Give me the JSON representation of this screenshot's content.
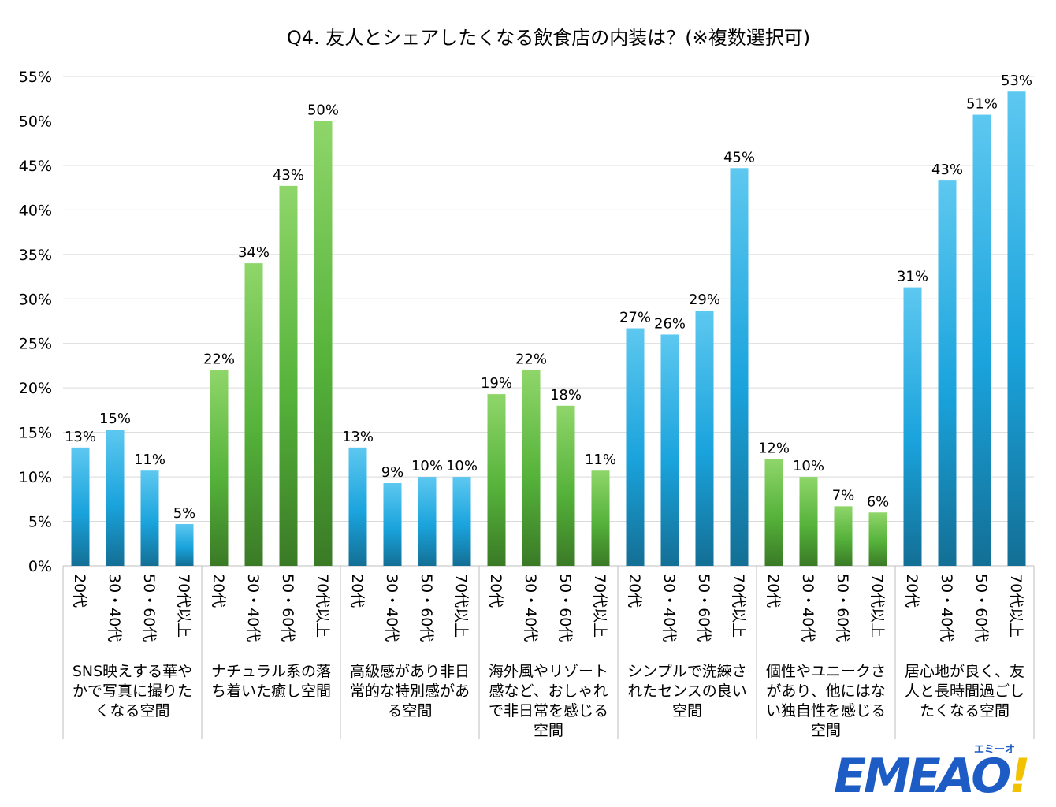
{
  "chart_data": {
    "type": "bar",
    "title": "Q4. 友人とシェアしたくなる飲食店の内装は？(※複数選択可)",
    "ylim": [
      0,
      55
    ],
    "y_ticks": [
      "0%",
      "5%",
      "10%",
      "15%",
      "20%",
      "25%",
      "30%",
      "35%",
      "40%",
      "45%",
      "50%",
      "55%"
    ],
    "grid": true,
    "groups": [
      {
        "label": [
          "SNS映えする華や",
          "かで写真に撮りた",
          "くなる空間"
        ],
        "color": "blue",
        "categories": [
          "20代",
          "30・40代",
          "50・60代",
          "70代以上"
        ],
        "values": [
          13.3,
          15.3,
          10.7,
          4.7
        ],
        "labels": [
          "13%",
          "15%",
          "11%",
          "5%"
        ]
      },
      {
        "label": [
          "ナチュラル系の落",
          "ち着いた癒し空間"
        ],
        "color": "green",
        "categories": [
          "20代",
          "30・40代",
          "50・60代",
          "70代以上"
        ],
        "values": [
          22.0,
          34.0,
          42.7,
          50.0
        ],
        "labels": [
          "22%",
          "34%",
          "43%",
          "50%"
        ]
      },
      {
        "label": [
          "高級感があり非日",
          "常的な特別感があ",
          "る空間"
        ],
        "color": "blue",
        "categories": [
          "20代",
          "30・40代",
          "50・60代",
          "70代以上"
        ],
        "values": [
          13.3,
          9.3,
          10.0,
          10.0
        ],
        "labels": [
          "13%",
          "9%",
          "10%",
          "10%"
        ]
      },
      {
        "label": [
          "海外風やリゾート",
          "感など、おしゃれ",
          "で非日常を感じる",
          "空間"
        ],
        "color": "green",
        "categories": [
          "20代",
          "30・40代",
          "50・60代",
          "70代以上"
        ],
        "values": [
          19.3,
          22.0,
          18.0,
          10.7
        ],
        "labels": [
          "19%",
          "22%",
          "18%",
          "11%"
        ]
      },
      {
        "label": [
          "シンプルで洗練さ",
          "れたセンスの良い",
          "空間"
        ],
        "color": "blue",
        "categories": [
          "20代",
          "30・40代",
          "50・60代",
          "70代以上"
        ],
        "values": [
          26.7,
          26.0,
          28.7,
          44.7
        ],
        "labels": [
          "27%",
          "26%",
          "29%",
          "45%"
        ]
      },
      {
        "label": [
          "個性やユニークさ",
          "があり、他にはな",
          "い独自性を感じる",
          "空間"
        ],
        "color": "green",
        "categories": [
          "20代",
          "30・40代",
          "50・60代",
          "70代以上"
        ],
        "values": [
          12.0,
          10.0,
          6.7,
          6.0
        ],
        "labels": [
          "12%",
          "10%",
          "7%",
          "6%"
        ]
      },
      {
        "label": [
          "居心地が良く、友",
          "人と長時間過ごし",
          "たくなる空間"
        ],
        "color": "blue",
        "categories": [
          "20代",
          "30・40代",
          "50・60代",
          "70代以上"
        ],
        "values": [
          31.3,
          43.3,
          50.7,
          53.3
        ],
        "labels": [
          "31%",
          "43%",
          "51%",
          "53%"
        ]
      }
    ],
    "colors": {
      "blue_top": "#5dc8f0",
      "blue_mid": "#1aa3dc",
      "blue_bottom": "#136f95",
      "green_top": "#8fd66a",
      "green_mid": "#55b23a",
      "green_bottom": "#3a7a26"
    }
  },
  "logo": {
    "text": "EMEAO",
    "bang": "!",
    "kana": "エミーオ"
  }
}
